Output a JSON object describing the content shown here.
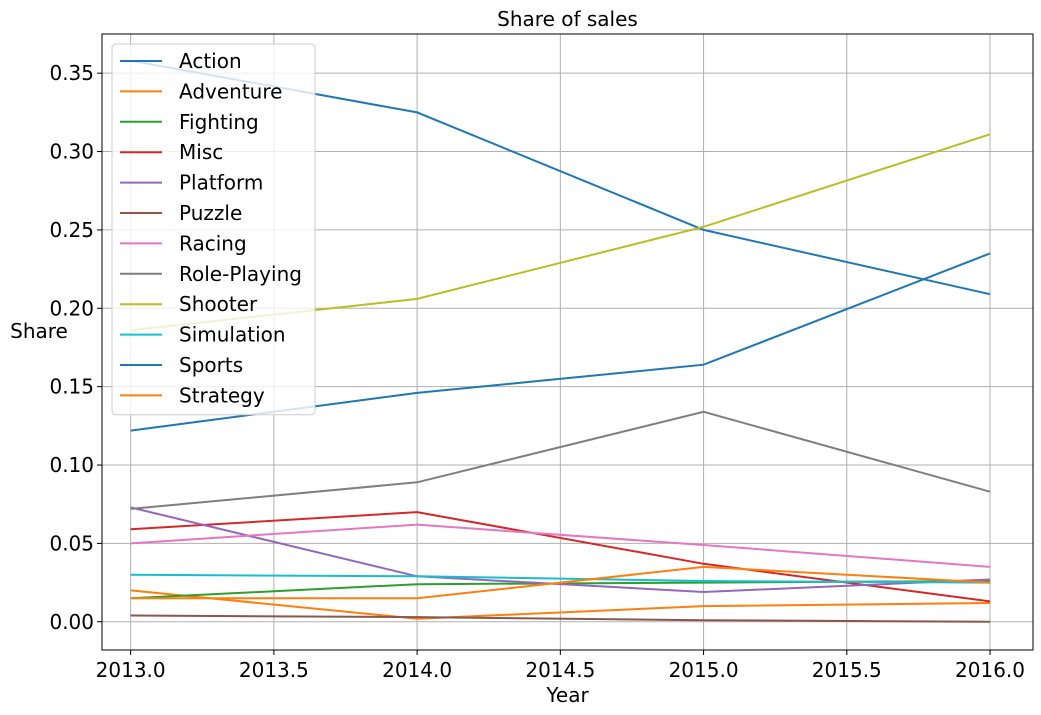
{
  "chart_data": {
    "type": "line",
    "title": "Share of sales",
    "xlabel": "Year",
    "ylabel": "Share",
    "xlim": [
      2012.9,
      2016.15
    ],
    "ylim": [
      -0.018,
      0.375
    ],
    "xticks": [
      "2013.0",
      "2013.5",
      "2014.0",
      "2014.5",
      "2015.0",
      "2015.5",
      "2016.0"
    ],
    "yticks": [
      "0.00",
      "0.05",
      "0.10",
      "0.15",
      "0.20",
      "0.25",
      "0.30",
      "0.35"
    ],
    "grid": true,
    "legend_position": "top-left",
    "x": [
      2013,
      2014,
      2015,
      2016
    ],
    "series": [
      {
        "name": "Action",
        "color": "#1f77b4",
        "values": [
          0.358,
          0.325,
          0.25,
          0.209
        ]
      },
      {
        "name": "Adventure",
        "color": "#ff7f0e",
        "values": [
          0.02,
          0.002,
          0.01,
          0.012
        ]
      },
      {
        "name": "Fighting",
        "color": "#2ca02c",
        "values": [
          0.015,
          0.024,
          0.025,
          0.026
        ]
      },
      {
        "name": "Misc",
        "color": "#d62728",
        "values": [
          0.059,
          0.07,
          0.037,
          0.013
        ]
      },
      {
        "name": "Platform",
        "color": "#9467bd",
        "values": [
          0.073,
          0.029,
          0.019,
          0.027
        ]
      },
      {
        "name": "Puzzle",
        "color": "#8c564b",
        "values": [
          0.004,
          0.003,
          0.001,
          0.0
        ]
      },
      {
        "name": "Racing",
        "color": "#e377c2",
        "values": [
          0.05,
          0.062,
          0.049,
          0.035
        ]
      },
      {
        "name": "Role-Playing",
        "color": "#7f7f7f",
        "values": [
          0.072,
          0.089,
          0.134,
          0.083
        ]
      },
      {
        "name": "Shooter",
        "color": "#bcbd22",
        "values": [
          0.186,
          0.206,
          0.252,
          0.311
        ]
      },
      {
        "name": "Simulation",
        "color": "#17becf",
        "values": [
          0.03,
          0.029,
          0.026,
          0.025
        ]
      },
      {
        "name": "Sports",
        "color": "#1f77b4",
        "values": [
          0.122,
          0.146,
          0.164,
          0.235
        ]
      },
      {
        "name": "Strategy",
        "color": "#ff7f0e",
        "values": [
          0.015,
          0.015,
          0.035,
          0.025
        ]
      }
    ]
  }
}
